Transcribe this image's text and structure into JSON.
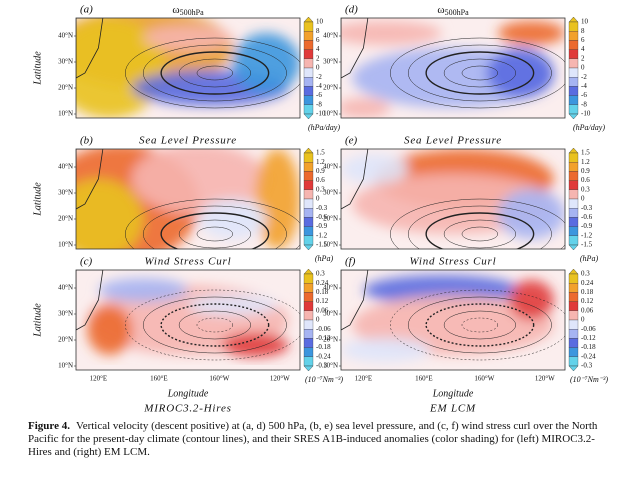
{
  "panels": [
    {
      "label": "(a)",
      "title": "ω",
      "title_sub": "500hPa"
    },
    {
      "label": "(b)",
      "title": "Sea Level Pressure"
    },
    {
      "label": "(c)",
      "title": "Wind Stress Curl"
    },
    {
      "label": "(d)",
      "title": "ω",
      "title_sub": "500hPa"
    },
    {
      "label": "(e)",
      "title": "Sea Level Pressure"
    },
    {
      "label": "(f)",
      "title": "Wind Stress Curl"
    }
  ],
  "colorbars": [
    {
      "ticks": [
        "10",
        "8",
        "6",
        "4",
        "2",
        "0",
        "-2",
        "-4",
        "-6",
        "-8",
        "-10"
      ],
      "unit": "(hPa/day)"
    },
    {
      "ticks": [
        "1.5",
        "1.2",
        "0.9",
        "0.6",
        "0.3",
        "0",
        "-0.3",
        "-0.6",
        "-0.9",
        "-1.2",
        "-1.5"
      ],
      "unit": "(hPa)"
    },
    {
      "ticks": [
        "0.3",
        "0.24",
        "0.18",
        "0.12",
        "0.06",
        "0",
        "-0.06",
        "-0.12",
        "-0.18",
        "-0.24",
        "-0.3"
      ],
      "unit": "(10⁻⁷Nm⁻³)"
    }
  ],
  "y_axis_label": "Latitude",
  "lat_ticks": [
    "40°N",
    "30°N",
    "20°N",
    "10°N"
  ],
  "x_axis_label": "Longitude",
  "lon_ticks": [
    "120°E",
    "160°E",
    "160°W",
    "120°W"
  ],
  "columns": [
    "MIROC3.2-Hires",
    "EM LCM"
  ],
  "caption": {
    "label": "Figure 4.",
    "text": "Vertical velocity (descent positive) at (a, d) 500 hPa, (b, e) sea level pressure, and (c, f) wind stress curl over the North Pacific for the present-day climate (contour lines), and their SRES A1B-induced anomalies (color shading) for (left) MIROC3.2-Hires and (right) EM LCM."
  }
}
